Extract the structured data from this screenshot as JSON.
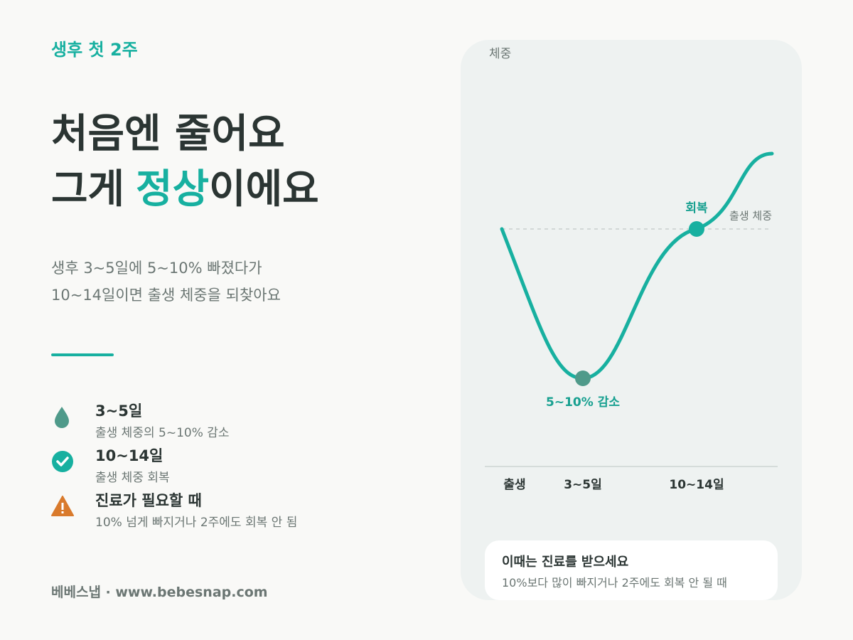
{
  "eyebrow": "생후 첫 2주",
  "headline": {
    "line1": "처음엔 줄어요",
    "line2_before": "그게",
    "line2_highlight": "정상",
    "line2_after": "이에요"
  },
  "description": [
    "생후 3~5일에 5~10% 빠졌다가",
    "10~14일이면 출생 체중을 되찾아요"
  ],
  "items": [
    {
      "title": "3~5일",
      "text": "출생 체중의 5~10% 감소"
    },
    {
      "title": "10~14일",
      "text": "출생 체중 회복"
    },
    {
      "title": "진료가 필요할 때",
      "text": "10% 넘게 빠지거나 2주에도 회복 안 됨"
    }
  ],
  "footer": "베베스냅 · www.bebesnap.com",
  "chart": {
    "y_label": "체중",
    "baseline_label": "출생 체중",
    "dip_label": "5~10% 감소",
    "recovery_label": "회복",
    "x_labels": [
      "출생",
      "3~5일",
      "10~14일"
    ]
  },
  "notice": {
    "title": "이때는 진료를 받으세요",
    "text": "10%보다 많이 빠지거나 2주에도 회복 안 될 때"
  }
}
